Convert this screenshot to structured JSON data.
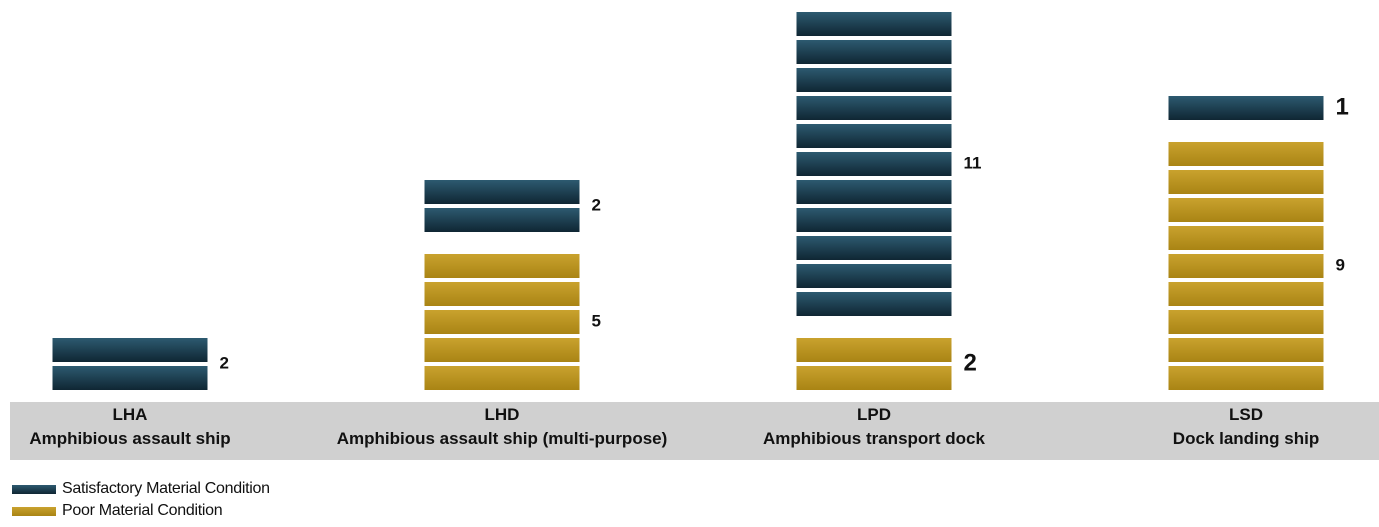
{
  "chart_data": {
    "type": "bar",
    "subtype": "stacked-unit-bars",
    "categories": [
      {
        "code": "LHA",
        "name": "Amphibious assault ship"
      },
      {
        "code": "LHD",
        "name": "Amphibious assault ship (multi-purpose)"
      },
      {
        "code": "LPD",
        "name": "Amphibious transport dock"
      },
      {
        "code": "LSD",
        "name": "Dock landing ship"
      }
    ],
    "series": [
      {
        "name": "Poor Material Condition",
        "color": "#b8921f",
        "values": [
          0,
          5,
          2,
          9
        ]
      },
      {
        "name": "Satisfactory Material Condition",
        "color": "#1a3d4f",
        "values": [
          2,
          2,
          11,
          1
        ]
      }
    ],
    "legend_position": "bottom-left",
    "grid": false
  }
}
